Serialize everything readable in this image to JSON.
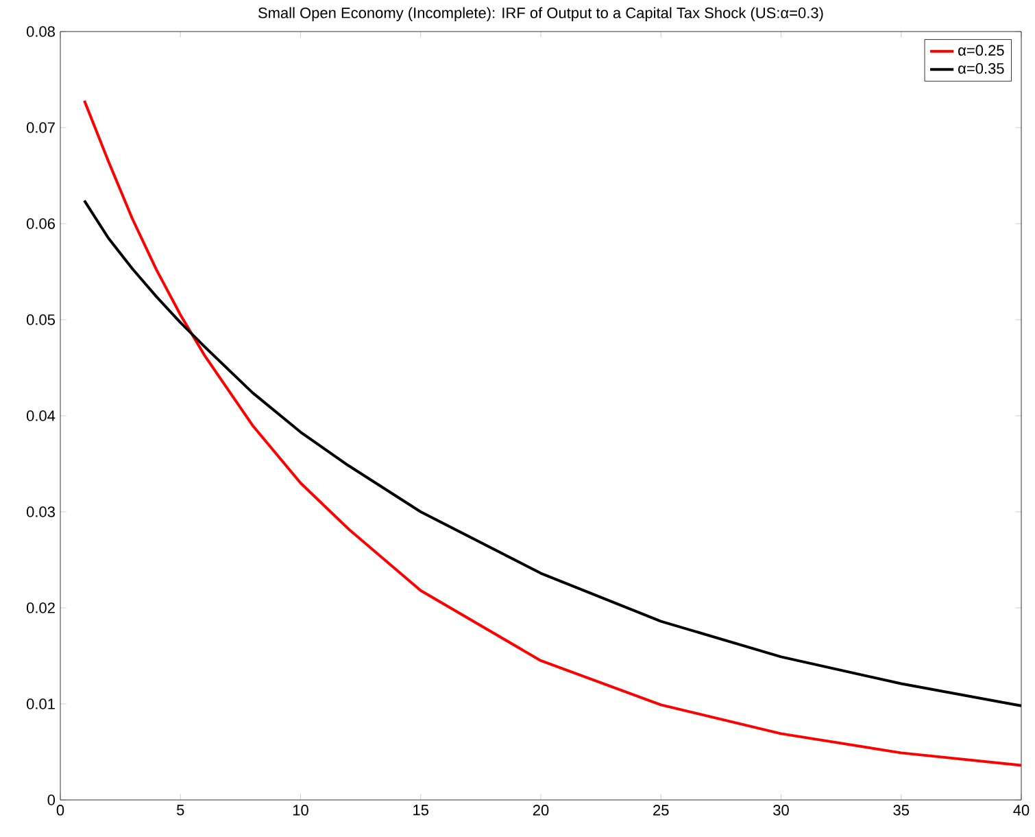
{
  "chart_data": {
    "type": "line",
    "title": "Small Open Economy (Incomplete): IRF of Output to a Capital Tax Shock (US:α=0.3)",
    "x": [
      1,
      2,
      3,
      4,
      5,
      6,
      8,
      10,
      12,
      15,
      20,
      25,
      30,
      35,
      40
    ],
    "series": [
      {
        "name": "α=0.25",
        "color": "#ff0000",
        "values": [
          0.0728,
          0.0665,
          0.0605,
          0.0552,
          0.0505,
          0.0463,
          0.039,
          0.033,
          0.0282,
          0.0218,
          0.0145,
          0.0099,
          0.0069,
          0.0049,
          0.0036
        ]
      },
      {
        "name": "α=0.35",
        "color": "#000000",
        "values": [
          0.0624,
          0.0585,
          0.0553,
          0.0524,
          0.0497,
          0.0472,
          0.0424,
          0.0383,
          0.0348,
          0.03,
          0.0236,
          0.0186,
          0.0149,
          0.0121,
          0.0098
        ]
      }
    ],
    "xlim": [
      0,
      40
    ],
    "xticks": [
      0,
      5,
      10,
      15,
      20,
      25,
      30,
      35,
      40
    ],
    "ylim": [
      0,
      0.08
    ],
    "yticks": [
      0,
      0.01,
      0.02,
      0.03,
      0.04,
      0.05,
      0.06,
      0.07,
      0.08
    ],
    "legend": "top right",
    "grid": false,
    "marker": "none",
    "line_style": "solid"
  }
}
